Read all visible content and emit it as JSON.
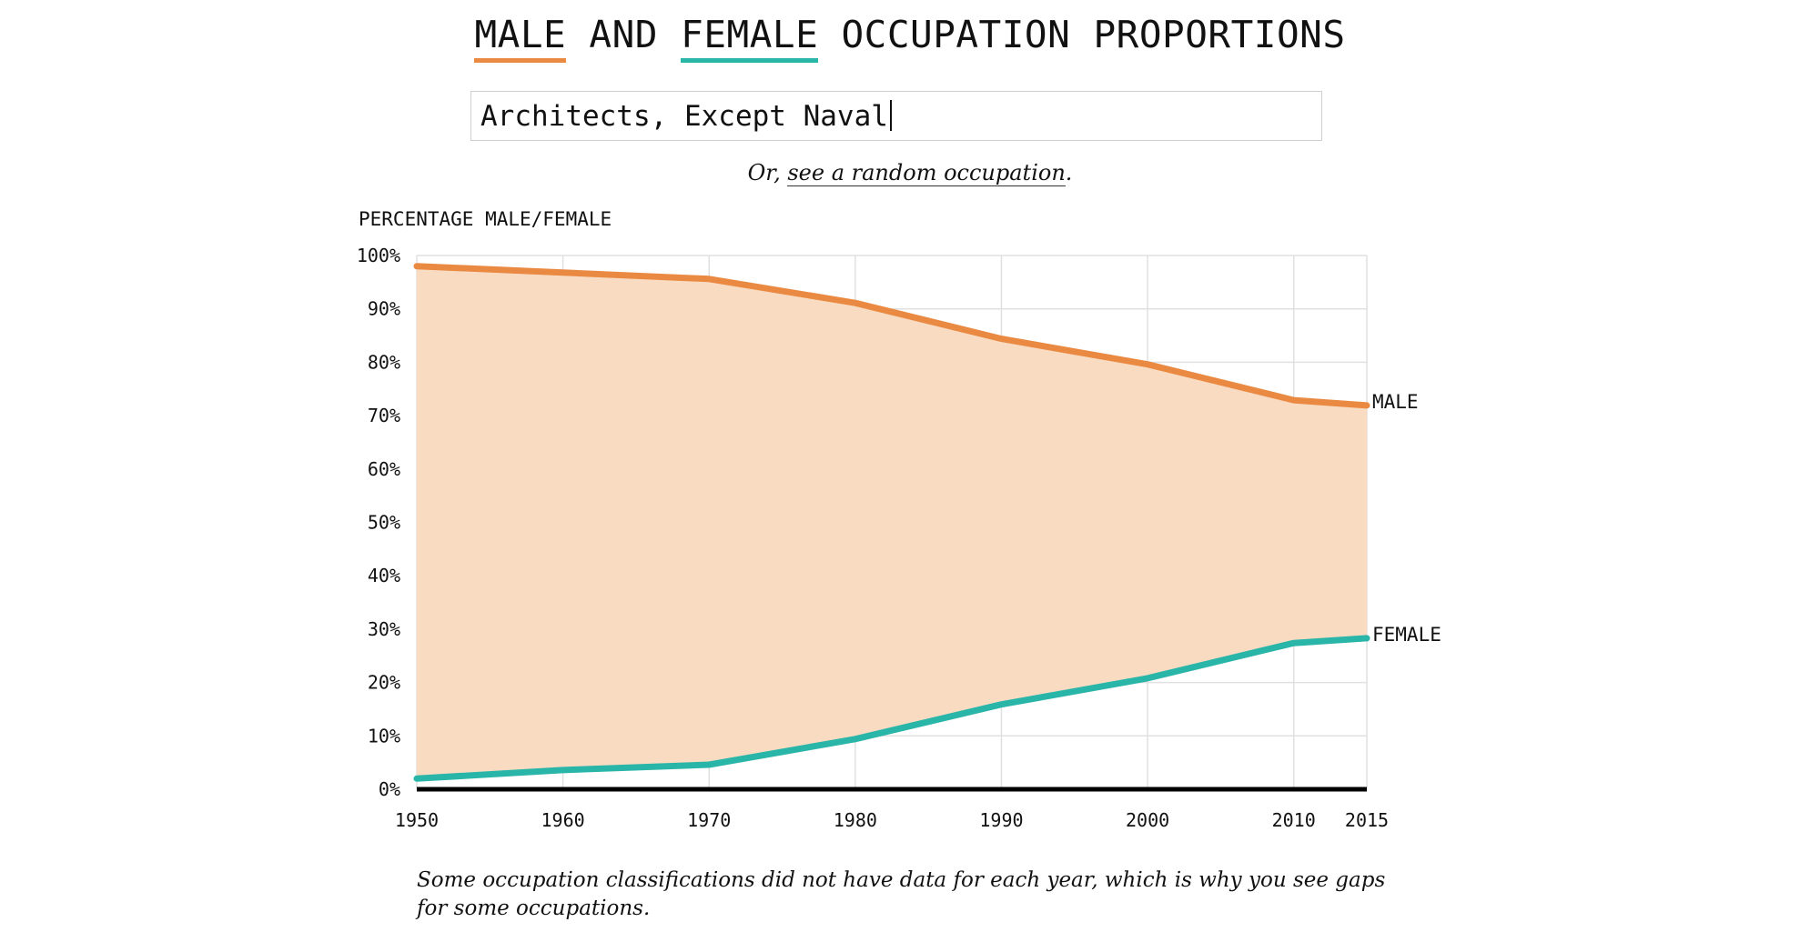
{
  "title": {
    "male_word": "MALE",
    "and_word": "AND",
    "female_word": "FEMALE",
    "rest": "OCCUPATION PROPORTIONS"
  },
  "search": {
    "value": "Architects, Except Naval"
  },
  "random": {
    "prefix": "Or,",
    "link_label": "see a random occupation",
    "suffix": "."
  },
  "footnote": "Some occupation classifications did not have data for each year, which is why you see gaps for some occupations.",
  "colors": {
    "male": "#ea8a42",
    "female": "#2ab5a9",
    "fill": "#f9dbc2",
    "grid": "#e0e0e0",
    "baseline": "#000000"
  },
  "chart_data": {
    "type": "area",
    "ylabel": "PERCENTAGE MALE/FEMALE",
    "x": [
      1950,
      1960,
      1970,
      1980,
      1990,
      2000,
      2010,
      2015
    ],
    "x_ticks": [
      "1950",
      "1960",
      "1970",
      "1980",
      "1990",
      "2000",
      "2010",
      "2015"
    ],
    "y_ticks": [
      "0%",
      "10%",
      "20%",
      "30%",
      "40%",
      "50%",
      "60%",
      "70%",
      "80%",
      "90%",
      "100%"
    ],
    "ylim": [
      0,
      100
    ],
    "xlim": [
      1950,
      2015
    ],
    "grid": true,
    "series": [
      {
        "name": "MALE",
        "values": [
          98,
          96.8,
          95.6,
          91.1,
          84.4,
          79.6,
          72.9,
          71.9
        ]
      },
      {
        "name": "FEMALE",
        "values": [
          2,
          3.6,
          4.6,
          9.4,
          15.9,
          20.8,
          27.4,
          28.3
        ]
      }
    ]
  }
}
